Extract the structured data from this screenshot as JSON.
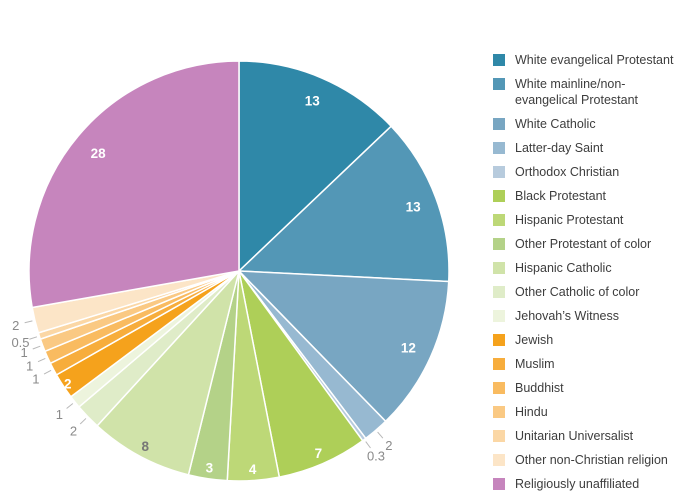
{
  "figure": {
    "background": "#ffffff",
    "title": ""
  },
  "chart_data": {
    "type": "pie",
    "title": "",
    "legend_position": "right",
    "start_angle_deg": 0,
    "direction": "clockwise",
    "total": 100.8,
    "label_color_inside_dark": "#777777",
    "label_color_inside_light": "#ffffff",
    "label_color_outside": "#8a8a8a",
    "leader_line_color": "#b8b8b8",
    "slice_border_color": "#ffffff",
    "slices": [
      {
        "label": "White evangelical Protestant",
        "value": 13,
        "display": "13",
        "color": "#2f88a8",
        "label_pos": "inside"
      },
      {
        "label": "White mainline/non-evangelical Protestant",
        "label_wrap": [
          "White mainline/non-",
          "evangelical Protestant"
        ],
        "value": 13,
        "display": "13",
        "color": "#5397b6",
        "label_pos": "inside"
      },
      {
        "label": "White Catholic",
        "value": 12,
        "display": "12",
        "color": "#78a6c2",
        "label_pos": "inside"
      },
      {
        "label": "Latter-day Saint",
        "value": 2,
        "display": "2",
        "color": "#97b9d1",
        "label_pos": "outside"
      },
      {
        "label": "Orthodox Christian",
        "value": 0.3,
        "display": "0.3",
        "color": "#b7cbdd",
        "label_pos": "outside"
      },
      {
        "label": "Black Protestant",
        "value": 7,
        "display": "7",
        "color": "#aecf58",
        "label_pos": "inside"
      },
      {
        "label": "Hispanic Protestant",
        "value": 4,
        "display": "4",
        "color": "#bdd877",
        "label_pos": "inside"
      },
      {
        "label": "Other Protestant of color",
        "value": 3,
        "display": "3",
        "color": "#b4d288",
        "label_pos": "inside"
      },
      {
        "label": "Hispanic Catholic",
        "value": 8,
        "display": "8",
        "color": "#d0e3a9",
        "label_pos": "inside"
      },
      {
        "label": "Other Catholic of color",
        "value": 2,
        "display": "2",
        "color": "#dfecc8",
        "label_pos": "outside"
      },
      {
        "label": "Jehovah’s Witness",
        "value": 1,
        "display": "1",
        "color": "#edf4dd",
        "label_pos": "outside"
      },
      {
        "label": "Jewish",
        "value": 2,
        "display": "2",
        "color": "#f5a21c",
        "label_pos": "inside"
      },
      {
        "label": "Muslim",
        "value": 1,
        "display": "1",
        "color": "#f7ad3c",
        "label_pos": "outside"
      },
      {
        "label": "Buddhist",
        "value": 1,
        "display": "1",
        "color": "#f9bb60",
        "label_pos": "outside"
      },
      {
        "label": "Hindu",
        "value": 1,
        "display": "1",
        "color": "#fac983",
        "label_pos": "outside"
      },
      {
        "label": "Unitarian Universalist",
        "value": 0.5,
        "display": "0.5",
        "color": "#fbd7a5",
        "label_pos": "outside"
      },
      {
        "label": "Other non-Christian religion",
        "value": 2,
        "display": "2",
        "color": "#fce5c7",
        "label_pos": "outside"
      },
      {
        "label": "Religiously unaffiliated",
        "value": 28,
        "display": "28",
        "color": "#c685bd",
        "label_pos": "inside"
      }
    ]
  }
}
